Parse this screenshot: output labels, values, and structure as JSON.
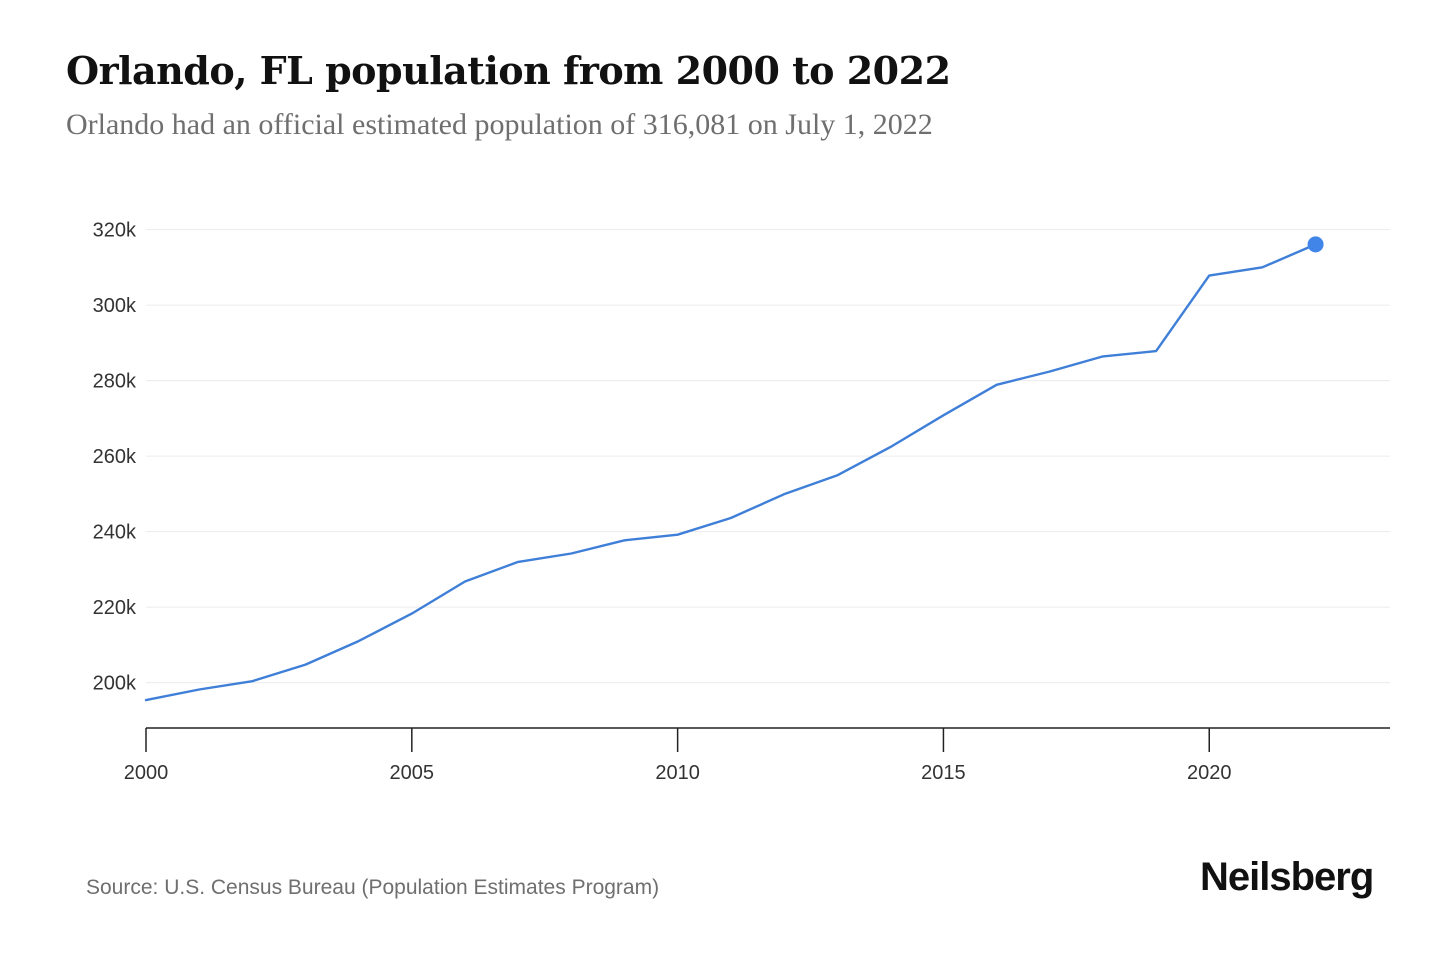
{
  "chart_data": {
    "type": "line",
    "title": "Orlando, FL population from 2000 to 2022",
    "subtitle": "Orlando had an official estimated population of 316,081 on July 1, 2022",
    "xlabel": "",
    "ylabel": "",
    "x": [
      2000,
      2001,
      2002,
      2003,
      2004,
      2005,
      2006,
      2007,
      2008,
      2009,
      2010,
      2011,
      2012,
      2013,
      2014,
      2015,
      2016,
      2017,
      2018,
      2019,
      2020,
      2021,
      2022
    ],
    "series": [
      {
        "name": "",
        "values": [
          195400,
          198200,
          200400,
          204800,
          211000,
          218300,
          226800,
          232000,
          234200,
          237700,
          239200,
          243600,
          249900,
          254900,
          262400,
          270800,
          278900,
          282400,
          286400,
          287800,
          307800,
          310000,
          316081
        ]
      }
    ],
    "ylim": [
      188000,
      322000
    ],
    "xlim": [
      2000,
      2023.4
    ],
    "y_ticks": [
      200000,
      220000,
      240000,
      260000,
      280000,
      300000,
      320000
    ],
    "y_tick_labels": [
      "200k",
      "220k",
      "240k",
      "260k",
      "280k",
      "300k",
      "320k"
    ],
    "x_ticks": [
      2000,
      2005,
      2010,
      2015,
      2020
    ],
    "x_tick_labels": [
      "2000",
      "2005",
      "2010",
      "2015",
      "2020"
    ],
    "grid": true,
    "legend": "none",
    "colors": {
      "line": "#3f7fd8",
      "marker": "#4285e8",
      "grid": "#ececec",
      "axis": "#222222"
    }
  },
  "footer": {
    "source": "Source: U.S. Census Bureau (Population Estimates Program)",
    "brand": "Neilsberg"
  }
}
